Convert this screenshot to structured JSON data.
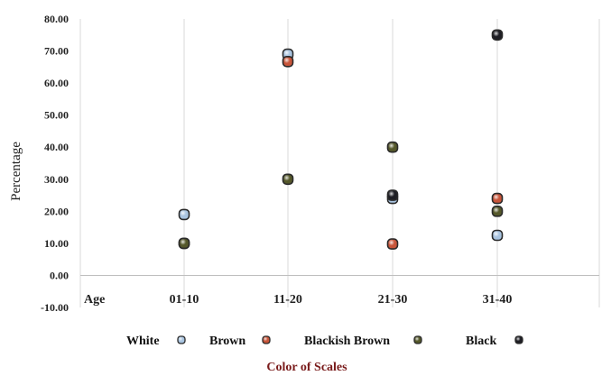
{
  "chart_data": {
    "type": "scatter",
    "title": "",
    "ylabel": "Percentage",
    "xlabel": "Age",
    "caption": "Color of Scales",
    "categories": [
      "01-10",
      "11-20",
      "21-30",
      "31-40"
    ],
    "ylim": [
      -10,
      80
    ],
    "yticks": [
      "80.00",
      "70.00",
      "60.00",
      "50.00",
      "40.00",
      "30.00",
      "20.00",
      "10.00",
      "0.00",
      "-10.00"
    ],
    "grid": "vertical",
    "legend_position": "bottom",
    "series": [
      {
        "name": "White",
        "color": "#a9c4e0",
        "values": [
          19,
          69,
          24,
          12.5
        ]
      },
      {
        "name": "Brown",
        "color": "#c8553a",
        "values": [
          10,
          66.7,
          9.8,
          24
        ]
      },
      {
        "name": "Blackish Brown",
        "color": "#55582a",
        "values": [
          10,
          30,
          40,
          20
        ]
      },
      {
        "name": "Black",
        "color": "#1e1e24",
        "values": [
          null,
          null,
          25,
          75
        ]
      }
    ]
  }
}
